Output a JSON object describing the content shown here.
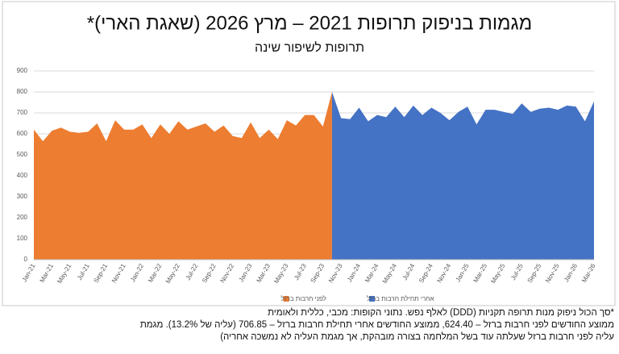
{
  "chart_data": {
    "type": "area",
    "title": "מגמות בניפוק תרופות 2021 – מרץ 2026 (שאגת הארי)*",
    "subtitle": "תרופות לשיפור שינה",
    "categories": [
      "Jan-21",
      null,
      "Mar-21",
      null,
      "May-21",
      null,
      "Jul-21",
      null,
      "Sep-21",
      null,
      "Nov-21",
      null,
      "Jan-22",
      null,
      "Mar-22",
      null,
      "May-22",
      null,
      "Jul-22",
      null,
      "Sep-22",
      null,
      "Nov-22",
      null,
      "Jan-23",
      null,
      "Mar-23",
      null,
      "May-23",
      null,
      "Jul-23",
      null,
      "Sep-23",
      null,
      "Nov-23",
      null,
      "Jan-24",
      null,
      "Mar-24",
      null,
      "May-24",
      null,
      "Jul-24",
      null,
      "Sep-24",
      null,
      "Nov-24",
      null,
      "Jan-25",
      null,
      "Mar-25",
      null,
      "May-25",
      null,
      "Jul-25",
      null,
      "Sep-25",
      null,
      "Nov-25",
      null,
      "Jan-26",
      null,
      "Mar-26"
    ],
    "series": [
      {
        "name": "לפני חרבות ברזל",
        "color": "#ed7d31",
        "values": [
          620,
          565,
          615,
          630,
          610,
          605,
          610,
          650,
          565,
          665,
          620,
          620,
          645,
          580,
          645,
          600,
          660,
          620,
          635,
          650,
          610,
          640,
          590,
          580,
          655,
          580,
          620,
          575,
          665,
          640,
          690,
          690,
          635,
          800,
          null,
          null,
          null,
          null,
          null,
          null,
          null,
          null,
          null,
          null,
          null,
          null,
          null,
          null,
          null,
          null,
          null,
          null,
          null,
          null,
          null,
          null,
          null,
          null,
          null,
          null,
          null,
          null,
          null
        ]
      },
      {
        "name": "אחרי תחילת חרבות ברזל",
        "color": "#4472c4",
        "values": [
          null,
          null,
          null,
          null,
          null,
          null,
          null,
          null,
          null,
          null,
          null,
          null,
          null,
          null,
          null,
          null,
          null,
          null,
          null,
          null,
          null,
          null,
          null,
          null,
          null,
          null,
          null,
          null,
          null,
          null,
          null,
          null,
          null,
          800,
          675,
          670,
          725,
          660,
          690,
          680,
          730,
          680,
          735,
          690,
          725,
          700,
          665,
          705,
          730,
          645,
          715,
          715,
          705,
          695,
          745,
          705,
          720,
          725,
          715,
          735,
          730,
          660,
          755
        ]
      }
    ],
    "ylim": [
      0,
      900
    ],
    "yticks": [
      0,
      100,
      200,
      300,
      400,
      500,
      600,
      700,
      800,
      900
    ],
    "grid": true,
    "footnote": [
      "*סך הכול ניפוק מנות תרופה תקניות (DDD) לאלף נפש. נתוני הקופות: מכבי, כללית ולאומית",
      "ממוצע החודשים לפני חרבות ברזל – 624.40, ממוצע החודשים אחרי תחילת חרבות ברזל – 706.85 (עליה של 13.2%). מגמת",
      "עליה לפני חרבות ברזל שעלתה עוד בשל המלחמה בצורה מובהקת, אך מגמת העליה לא נמשכה אחריה)"
    ]
  }
}
